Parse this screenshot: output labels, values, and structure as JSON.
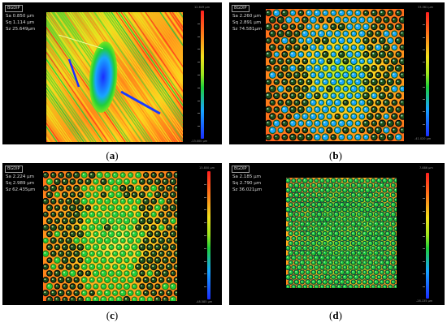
{
  "panels": [
    {
      "label": "(a)",
      "letter": "a",
      "tag": "BGDIP",
      "sa": "Sa 0.850   µm",
      "sq": "Sq 1.114   µm",
      "sz": "Sz 25.649µm",
      "scale_top": "12.649 µm",
      "scale_bot": "-13.000 µm",
      "style": "stripes"
    },
    {
      "label": "(b)",
      "letter": "b",
      "tag": "BGDIP",
      "sa": "Sa 2.260   µm",
      "sq": "Sq 2.891   µm",
      "sz": "Sz 74.581µm",
      "scale_top": "33.561 µm",
      "scale_bot": "-41.020 µm",
      "style": "dimples-dark"
    },
    {
      "label": "(c)",
      "letter": "c",
      "tag": "BGDIP",
      "sa": "Sa 2.224   µm",
      "sq": "Sq 2.989   µm",
      "sz": "Sz 62.435µm",
      "scale_top": "13.850 µm",
      "scale_bot": "-48.585 µm",
      "style": "dimples-warm"
    },
    {
      "label": "(d)",
      "letter": "d",
      "tag": "BGDIP",
      "sa": "Sa 2.185   µm",
      "sq": "Sq 2.790   µm",
      "sz": "Sz 36.021µm",
      "scale_top": "7.886 µm",
      "scale_bot": "-28.135 µm",
      "style": "dimples-small"
    }
  ],
  "colors": {
    "panel_bg": "#000000",
    "scale_top": "#ff1f1f",
    "scale_mid": "#1fcf3a",
    "scale_bot": "#1a2dff"
  }
}
